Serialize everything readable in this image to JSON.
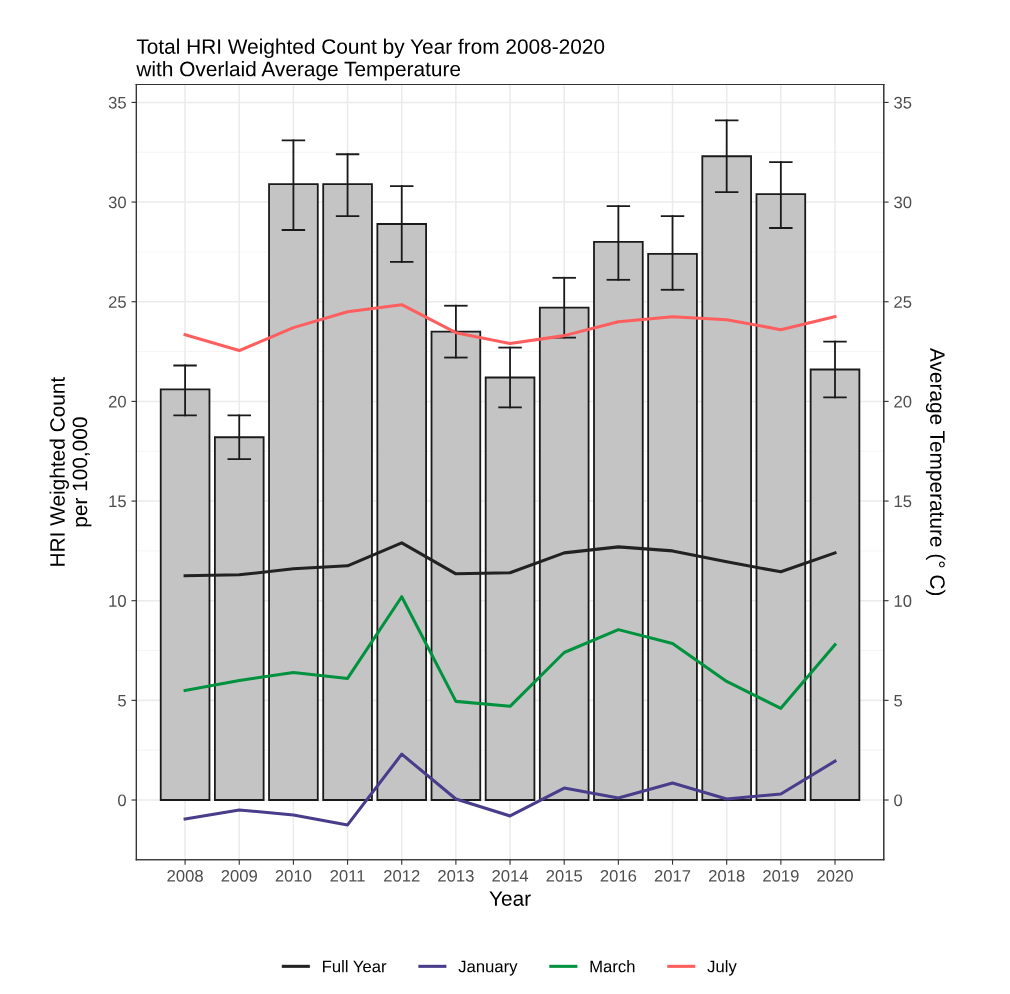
{
  "chart_data": {
    "type": "bar",
    "title": "Total HRI Weighted Count by Year from 2008-2020\nwith Overlaid Average Temperature",
    "xlabel": "Year",
    "ylabel": "HRI Weighted Count\nper 100,000",
    "y2label": "Average Temperature (° C)",
    "categories": [
      "2008",
      "2009",
      "2010",
      "2011",
      "2012",
      "2013",
      "2014",
      "2015",
      "2016",
      "2017",
      "2018",
      "2019",
      "2020"
    ],
    "series": [
      {
        "color": "#c4c4c4",
        "values": [
          20.6,
          18.2,
          30.9,
          30.9,
          28.9,
          23.5,
          21.2,
          24.7,
          28.0,
          27.4,
          32.3,
          30.4,
          21.6
        ],
        "errors": [
          [
            19.3,
            21.8
          ],
          [
            17.1,
            19.3
          ],
          [
            28.6,
            33.1
          ],
          [
            29.3,
            32.4
          ],
          [
            27.0,
            30.8
          ],
          [
            22.2,
            24.8
          ],
          [
            19.7,
            22.7
          ],
          [
            23.2,
            26.2
          ],
          [
            26.1,
            29.8
          ],
          [
            25.6,
            29.3
          ],
          [
            30.5,
            34.1
          ],
          [
            28.7,
            32.0
          ],
          [
            20.2,
            23.0
          ]
        ]
      },
      {
        "type": "line",
        "axis": "y2",
        "name": "Full Year",
        "color": "#222222",
        "values": [
          11.25,
          11.3,
          11.6,
          11.75,
          12.9,
          11.35,
          11.4,
          12.4,
          12.7,
          12.5,
          11.95,
          11.45,
          12.4
        ]
      },
      {
        "type": "line",
        "axis": "y2",
        "name": "January",
        "color": "#483d8b",
        "values": [
          -0.95,
          -0.5,
          -0.75,
          -1.25,
          2.3,
          0.05,
          -0.8,
          0.6,
          0.1,
          0.85,
          0.05,
          0.3,
          1.95
        ]
      },
      {
        "type": "line",
        "axis": "y2",
        "name": "March",
        "color": "#00923f",
        "values": [
          5.5,
          6.0,
          6.4,
          6.1,
          10.2,
          4.95,
          4.7,
          7.4,
          8.55,
          7.85,
          5.95,
          4.6,
          7.8
        ]
      },
      {
        "type": "line",
        "axis": "y2",
        "name": "July",
        "color": "#ff5e5e",
        "values": [
          23.35,
          22.55,
          23.7,
          24.5,
          24.85,
          23.45,
          22.9,
          23.3,
          24.0,
          24.25,
          24.1,
          23.6,
          24.25
        ]
      }
    ],
    "ylim": [
      -3,
      35.9
    ],
    "yticks": [
      0,
      5,
      10,
      15,
      20,
      25,
      30,
      35
    ],
    "y2lim": [
      -3,
      35.9
    ],
    "y2ticks": [
      0,
      5,
      10,
      15,
      20,
      25,
      30,
      35
    ],
    "grid": true,
    "legend": "bottom",
    "marker": "none",
    "line_style": "solid"
  }
}
